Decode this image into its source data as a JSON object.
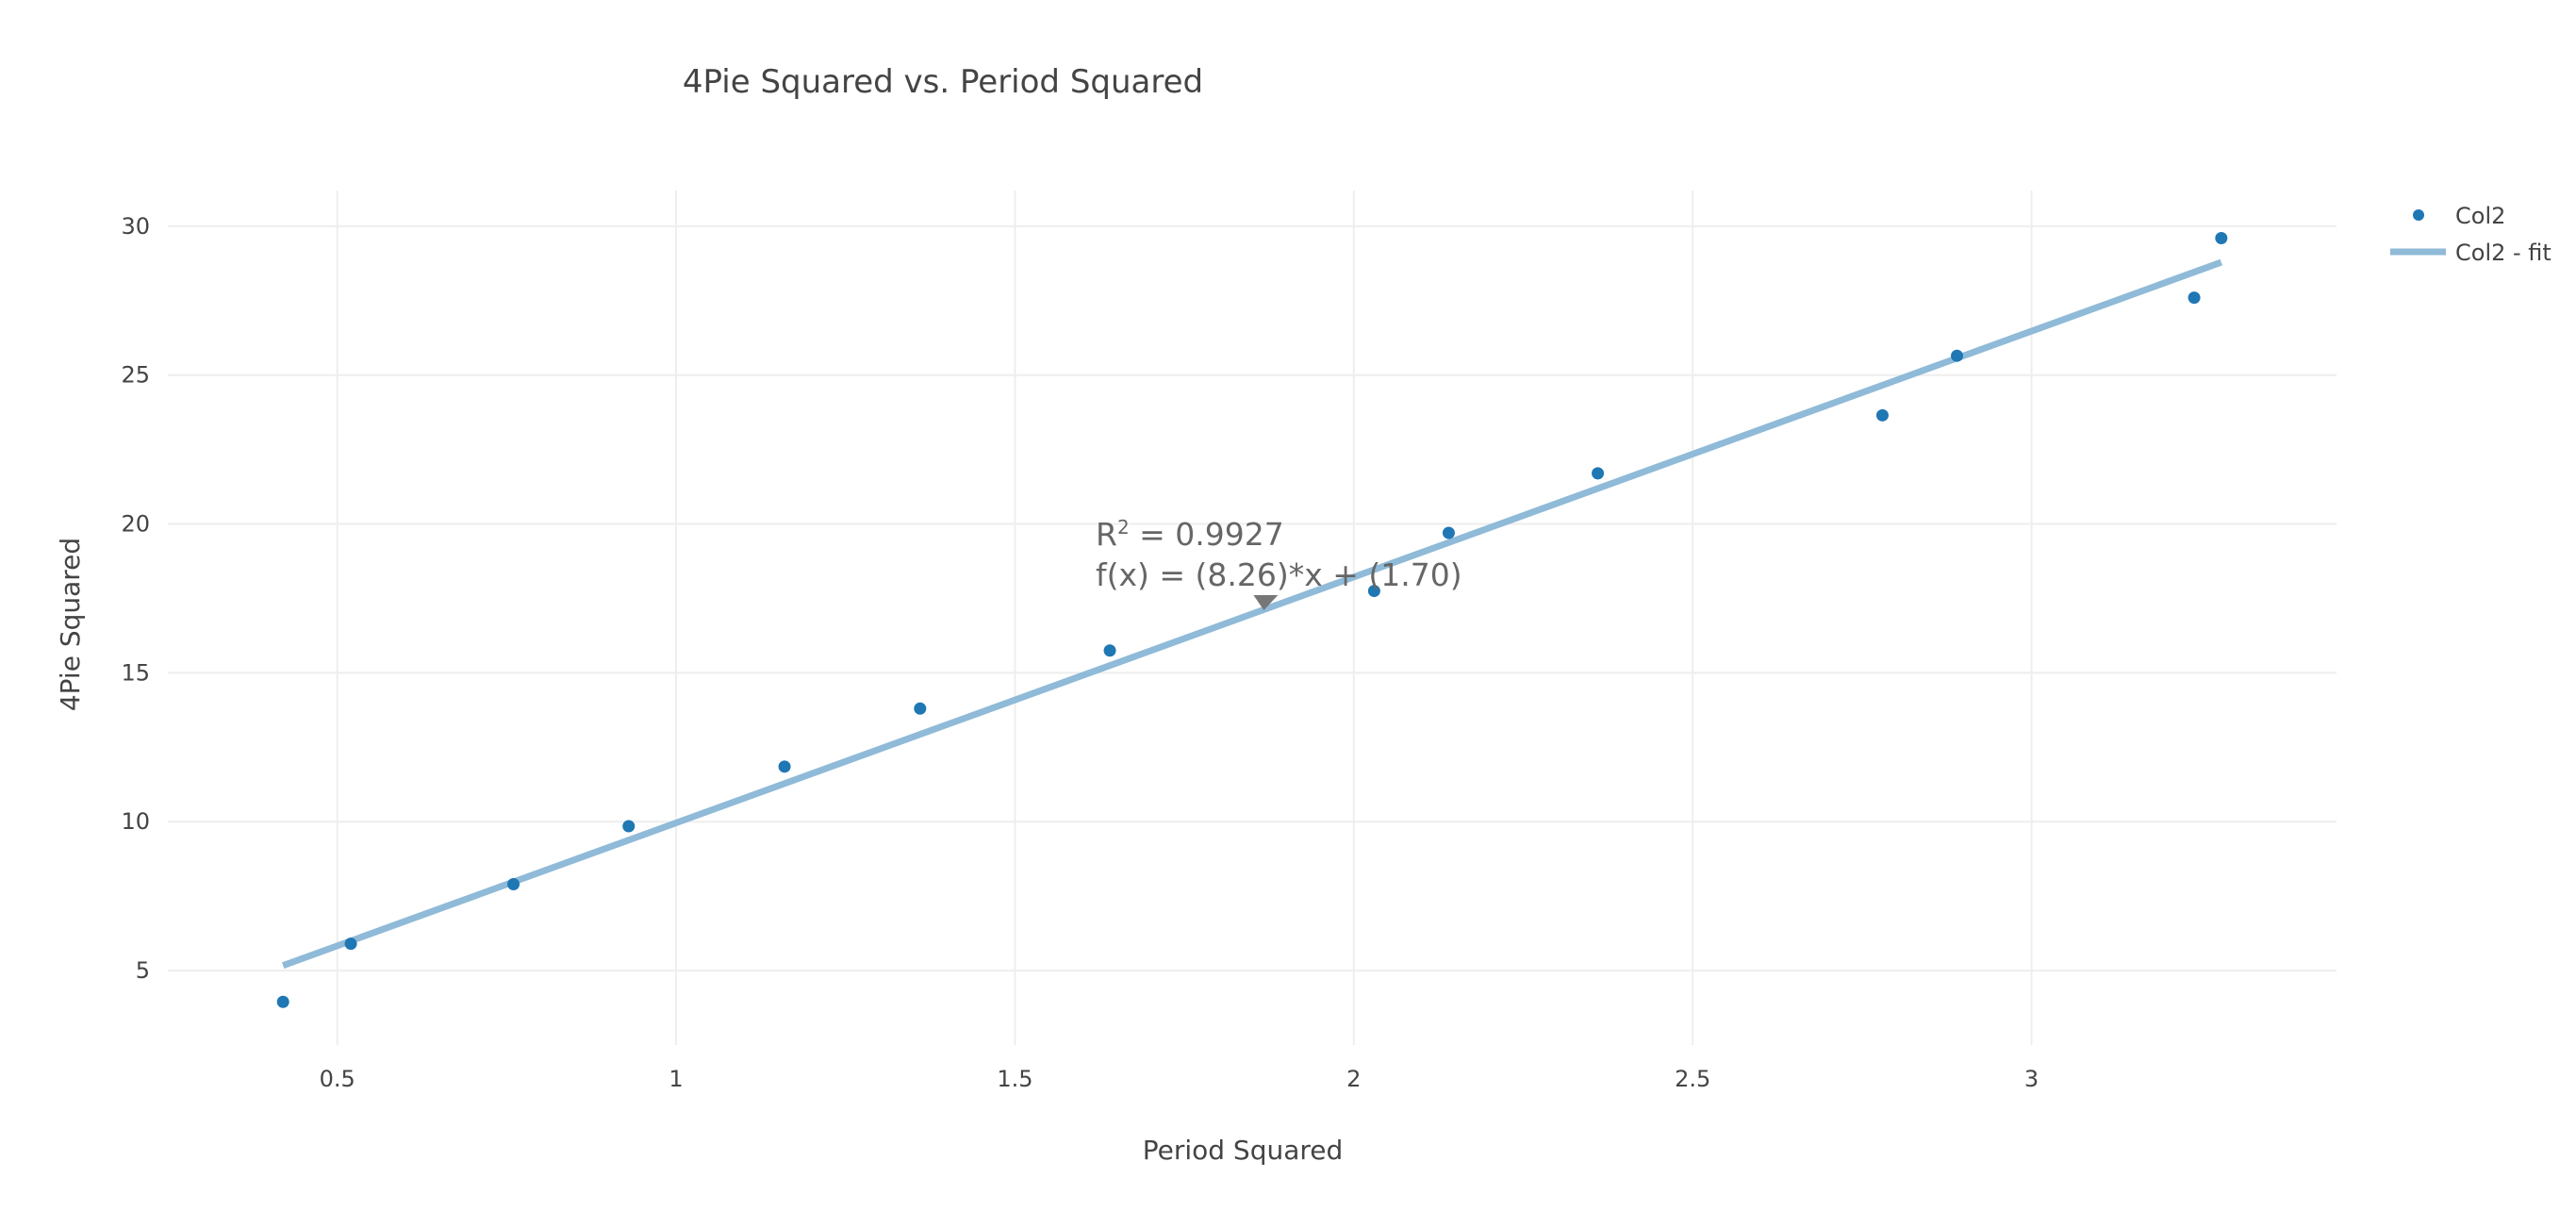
{
  "chart_data": {
    "type": "scatter",
    "title": "4Pie Squared vs. Period Squared",
    "xlabel": "Period Squared",
    "ylabel": "4Pie Squared",
    "xlim": [
      0.25,
      3.45
    ],
    "ylim": [
      2.5,
      31.2
    ],
    "xticks": [
      0.5,
      1,
      1.5,
      2,
      2.5,
      3
    ],
    "xtick_labels": [
      "0.5",
      "1",
      "1.5",
      "2",
      "2.5",
      "3"
    ],
    "yticks": [
      5,
      10,
      15,
      20,
      25,
      30
    ],
    "ytick_labels": [
      "5",
      "10",
      "15",
      "20",
      "25",
      "30"
    ],
    "grid": true,
    "legend_position": "top-right",
    "series": [
      {
        "name": "Col2",
        "type": "scatter",
        "color": "#1f77b4",
        "points": [
          [
            0.42,
            3.95
          ],
          [
            0.52,
            5.9
          ],
          [
            0.76,
            7.9
          ],
          [
            0.93,
            9.85
          ],
          [
            1.16,
            11.85
          ],
          [
            1.36,
            13.8
          ],
          [
            1.64,
            15.75
          ],
          [
            2.03,
            17.75
          ],
          [
            2.14,
            19.7
          ],
          [
            2.36,
            21.7
          ],
          [
            2.78,
            23.65
          ],
          [
            2.89,
            25.65
          ],
          [
            3.24,
            27.6
          ],
          [
            3.28,
            29.6
          ]
        ]
      },
      {
        "name": "Col2 - fit",
        "type": "line",
        "color": "#8fbad8",
        "points": [
          [
            0.42,
            5.17
          ],
          [
            3.28,
            28.79
          ]
        ]
      }
    ],
    "annotation": {
      "r2_prefix": "R",
      "r2_superscript": "2",
      "r2_value": " = 0.9927",
      "equation": "f(x) = (8.26)*x + (1.70)",
      "anchor": [
        1.87,
        17.2
      ]
    }
  }
}
